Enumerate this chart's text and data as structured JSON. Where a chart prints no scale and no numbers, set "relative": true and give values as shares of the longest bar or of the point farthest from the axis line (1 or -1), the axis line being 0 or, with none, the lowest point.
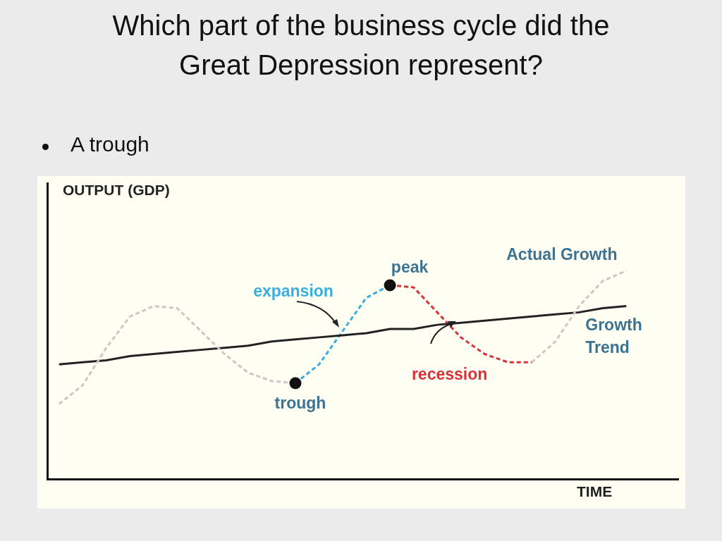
{
  "chart_data": {
    "type": "line",
    "title": "Which part of the business cycle did the Great Depression represent?",
    "subtitle": "A trough",
    "xlabel": "TIME",
    "ylabel": "OUTPUT (GDP)",
    "relative": true,
    "tick_labels": false,
    "categories": [
      null,
      null,
      null,
      null,
      null,
      null,
      null,
      null,
      null,
      null,
      null,
      null,
      null,
      null,
      null,
      null,
      null,
      null,
      null,
      null,
      null,
      null,
      null,
      null,
      null
    ],
    "series": [
      {
        "name": "Actual Growth",
        "color": "#c8c8c8",
        "line_style": "dashed",
        "marker": "none",
        "values": [
          0.36,
          0.45,
          0.63,
          0.78,
          0.83,
          0.82,
          0.71,
          0.6,
          0.51,
          0.47,
          0.46,
          null,
          null,
          null,
          null,
          null,
          null,
          null,
          null,
          null,
          0.56,
          0.66,
          0.83,
          0.95,
          1
        ]
      },
      {
        "name": "Growth Trend",
        "color": "#222222",
        "line_style": "solid",
        "marker": "none",
        "values": [
          0.55,
          0.56,
          0.57,
          0.59,
          0.6,
          0.61,
          0.62,
          0.63,
          0.64,
          0.66,
          0.67,
          0.68,
          0.69,
          0.7,
          0.72,
          0.72,
          0.74,
          0.75,
          0.76,
          0.77,
          0.78,
          0.79,
          0.8,
          0.82,
          0.83
        ]
      },
      {
        "name": "expansion",
        "color": "#3aaee0",
        "line_style": "dashed",
        "marker": "none",
        "values": [
          null,
          null,
          null,
          null,
          null,
          null,
          null,
          null,
          null,
          null,
          0.46,
          0.55,
          0.71,
          0.87,
          0.93,
          null,
          null,
          null,
          null,
          null,
          null,
          null,
          null,
          null,
          null
        ]
      },
      {
        "name": "recession",
        "color": "#d9303a",
        "line_style": "dashed",
        "marker": "none",
        "values": [
          null,
          null,
          null,
          null,
          null,
          null,
          null,
          null,
          null,
          null,
          null,
          null,
          null,
          null,
          0.93,
          0.92,
          0.8,
          0.68,
          0.6,
          0.56,
          0.56,
          null,
          null,
          null,
          null
        ]
      },
      {
        "name": "trough",
        "color": "#111111",
        "marker": "circle",
        "values": [
          null,
          null,
          null,
          null,
          null,
          null,
          null,
          null,
          null,
          null,
          0.46,
          null,
          null,
          null,
          null,
          null,
          null,
          null,
          null,
          null,
          null,
          null,
          null,
          null,
          null
        ]
      },
      {
        "name": "peak",
        "color": "#111111",
        "marker": "circle",
        "values": [
          null,
          null,
          null,
          null,
          null,
          null,
          null,
          null,
          null,
          null,
          null,
          null,
          null,
          null,
          0.93,
          null,
          null,
          null,
          null,
          null,
          null,
          null,
          null,
          null,
          null
        ]
      }
    ]
  }
}
